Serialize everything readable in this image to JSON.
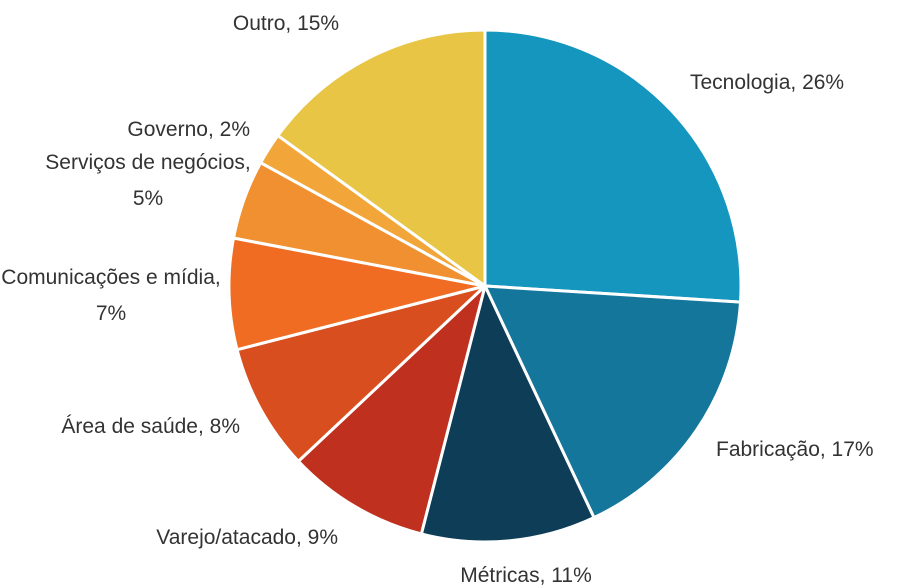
{
  "chart_data": {
    "type": "pie",
    "categories": [
      "Tecnologia",
      "Fabricação",
      "Métricas",
      "Varejo/atacado",
      "Área de saúde",
      "Comunicações e mídia",
      "Serviços de negócios",
      "Governo",
      "Outro"
    ],
    "values": [
      26,
      17,
      11,
      9,
      8,
      7,
      5,
      2,
      15
    ],
    "value_labels": [
      "Tecnologia, 26%",
      "Fabricação, 17%",
      "Métricas, 11%",
      "Varejo/atacado, 9%",
      "Área de saúde, 8%",
      "Comunicações e mídia, 7%",
      "Serviços de negócios, 5%",
      "Governo, 2%",
      "Outro, 15%"
    ],
    "colors": [
      "#1496be",
      "#13769a",
      "#0e3d58",
      "#c0301f",
      "#d84e1e",
      "#ef6c22",
      "#f09030",
      "#f2a63a",
      "#e8c544"
    ]
  }
}
